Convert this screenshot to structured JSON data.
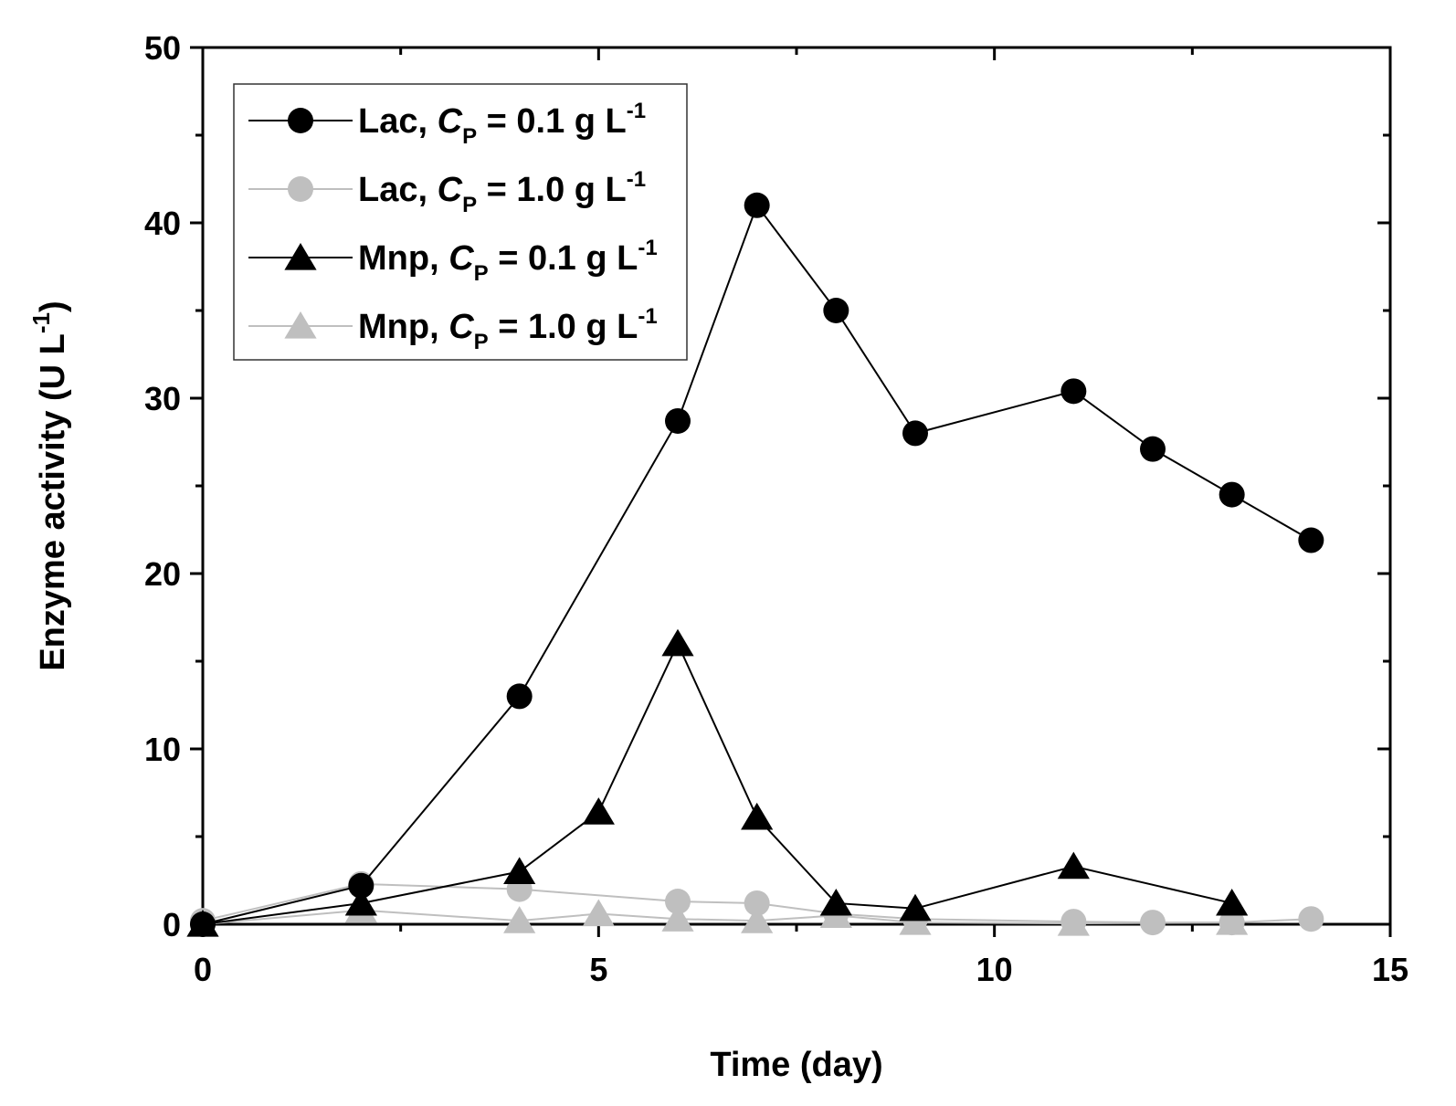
{
  "chart_data": {
    "type": "line",
    "title": "",
    "xlabel": "Time (day)",
    "ylabel_main": "Enzyme activity (U L",
    "ylabel_sup": "-1",
    "ylabel_close": ")",
    "xlim": [
      0,
      15
    ],
    "ylim": [
      0,
      50
    ],
    "x_ticks": [
      0,
      5,
      10,
      15
    ],
    "x_tick_labels": [
      "0",
      "5",
      "10",
      "15"
    ],
    "y_ticks": [
      0,
      10,
      20,
      30,
      40,
      50
    ],
    "y_tick_labels": [
      "0",
      "10",
      "20",
      "30",
      "40",
      "50"
    ],
    "legend_position": "top-left",
    "series": [
      {
        "name": "Lac, CP = 0.1 g L-1",
        "legend_prefix": "Lac, ",
        "legend_var": "C",
        "legend_sub": "P",
        "legend_mid": " = 0.1 g L",
        "legend_sup": "-1",
        "marker": "circle",
        "color": "#000000",
        "x": [
          0,
          2,
          4,
          6,
          7,
          8,
          9,
          11,
          12,
          13,
          14
        ],
        "y": [
          0,
          2.2,
          13,
          28.7,
          41,
          35,
          28,
          30.4,
          27.1,
          24.5,
          21.9
        ]
      },
      {
        "name": "Lac, CP = 1.0 g L-1",
        "legend_prefix": "Lac, ",
        "legend_var": "C",
        "legend_sub": "P",
        "legend_mid": " = 1.0 g L",
        "legend_sup": "-1",
        "marker": "circle",
        "color": "#bfbfbf",
        "x": [
          0,
          2,
          4,
          6,
          7,
          8,
          9,
          11,
          12,
          13,
          14
        ],
        "y": [
          0.2,
          2.3,
          2.0,
          1.3,
          1.2,
          0.6,
          0.3,
          0.15,
          0.1,
          0.1,
          0.3
        ]
      },
      {
        "name": "Mnp, CP = 0.1 g L-1",
        "legend_prefix": "Mnp, ",
        "legend_var": "C",
        "legend_sub": "P",
        "legend_mid": " = 0.1 g L",
        "legend_sup": "-1",
        "marker": "triangle",
        "color": "#000000",
        "x": [
          0,
          2,
          4,
          5,
          6,
          7,
          8,
          9,
          11,
          13
        ],
        "y": [
          0,
          1.2,
          3.0,
          6.4,
          16,
          6.1,
          1.2,
          0.9,
          3.3,
          1.2
        ]
      },
      {
        "name": "Mnp, CP = 1.0 g L-1",
        "legend_prefix": "Mnp, ",
        "legend_var": "C",
        "legend_sub": "P",
        "legend_mid": " = 1.0 g L",
        "legend_sup": "-1",
        "marker": "triangle",
        "color": "#bfbfbf",
        "x": [
          0,
          2,
          4,
          5,
          6,
          7,
          8,
          9,
          11,
          13
        ],
        "y": [
          0,
          0.8,
          0.2,
          0.6,
          0.3,
          0.2,
          0.5,
          0.1,
          0.05,
          0.1
        ]
      }
    ]
  }
}
